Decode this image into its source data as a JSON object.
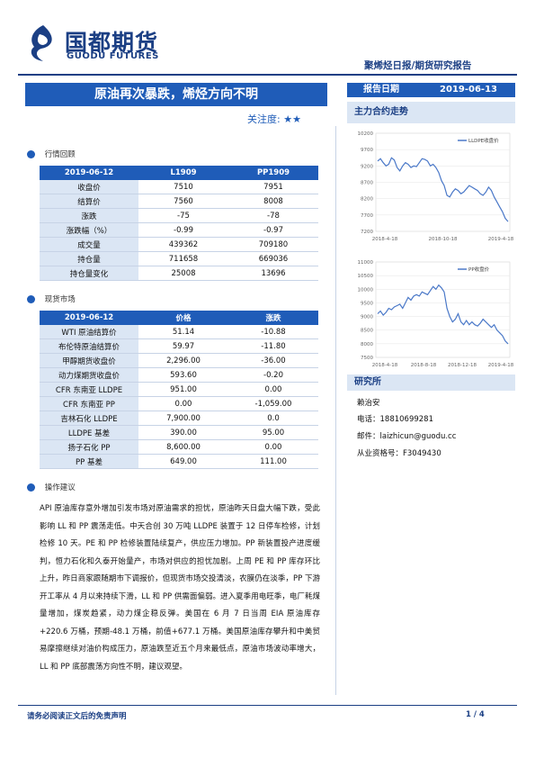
{
  "header": {
    "logo_cn": "国都期货",
    "logo_en": "GUODU FUTURES",
    "report_type": "聚烯烃日报/期货研究报告",
    "title": "原油再次暴跌，烯烃方向不明",
    "date_label": "报告日期",
    "date_value": "2019-06-13",
    "attention_label": "关注度:",
    "attention_stars": "★★"
  },
  "section_review": {
    "title": "行情回顾"
  },
  "review_table": {
    "headers": [
      "2019-06-12",
      "L1909",
      "PP1909"
    ],
    "rows": [
      [
        "收盘价",
        "7510",
        "7951"
      ],
      [
        "结算价",
        "7560",
        "8008"
      ],
      [
        "涨跌",
        "-75",
        "-78"
      ],
      [
        "涨跌幅（%）",
        "-0.99",
        "-0.97"
      ],
      [
        "成交量",
        "439362",
        "709180"
      ],
      [
        "持仓量",
        "711658",
        "669036"
      ],
      [
        "持仓量变化",
        "25008",
        "13696"
      ]
    ]
  },
  "section_spot": {
    "title": "现货市场"
  },
  "spot_table": {
    "headers": [
      "2019-06-12",
      "价格",
      "涨跌"
    ],
    "rows": [
      [
        "WTI 原油结算价",
        "51.14",
        "-10.88"
      ],
      [
        "布伦特原油结算价",
        "59.97",
        "-11.80"
      ],
      [
        "甲醇期货收盘价",
        "2,296.00",
        "-36.00"
      ],
      [
        "动力煤期货收盘价",
        "593.60",
        "-0.20"
      ],
      [
        "CFR 东南亚 LLDPE",
        "951.00",
        "0.00"
      ],
      [
        "CFR 东南亚 PP",
        "0.00",
        "-1,059.00"
      ],
      [
        "吉林石化 LLDPE",
        "7,900.00",
        "0.0"
      ],
      [
        "LLDPE 基差",
        "390.00",
        "95.00"
      ],
      [
        "扬子石化 PP",
        "8,600.00",
        "0.00"
      ],
      [
        "PP 基差",
        "649.00",
        "111.00"
      ]
    ]
  },
  "section_ops": {
    "title": "操作建议"
  },
  "ops_text": "API 原油库存意外增加引发市场对原油需求的担忧，原油昨天日盘大幅下跌，受此影响 LL 和 PP 震荡走低。中天合创 30 万吨 LLDPE 装置于 12 日停车检修，计划检修 10 天。PE 和 PP 检修装置陆续复产，供应压力增加。PP 新装置投产进度缓判，恒力石化和久泰开始量产，市场对供应的担忧加剧。上周 PE 和 PP 库存环比上升，昨日商家跟随期市下调报价，但现货市场交投清淡，农膜仍在淡季，PP 下游开工率从 4 月以来持续下滑，LL 和 PP 供需面偏弱。进入夏季用电旺季，电厂耗煤量增加，煤炭趋紧，动力煤企稳反弹。美国在 6 月 7 日当周 EIA 原油库存 +220.6 万桶，预期-48.1 万桶，前值+677.1 万桶。美国原油库存攀升和中美贸易摩擦继续对油价构成压力，原油跌至近五个月来最低点，原油市场波动率增大，LL 和 PP 底部震荡方向性不明，建议观望。",
  "section_charts": {
    "title": "主力合约走势"
  },
  "chart_data": [
    {
      "type": "line",
      "title": "",
      "series": [
        {
          "name": "LLDPE收盘价",
          "values": [
            9350,
            9420,
            9300,
            9200,
            9250,
            9450,
            9380,
            9150,
            9050,
            9200,
            9300,
            9250,
            9150,
            9200,
            9180,
            9300,
            9420,
            9400,
            9350,
            9200,
            9250,
            9150,
            9000,
            8750,
            8600,
            8300,
            8250,
            8400,
            8500,
            8450,
            8350,
            8400,
            8500,
            8600,
            8550,
            8500,
            8450,
            8350,
            8300,
            8400,
            8550,
            8450,
            8250,
            8100,
            7950,
            7800,
            7600,
            7500
          ]
        }
      ],
      "x_ticks": [
        "2018-4-18",
        "2018-10-18",
        "2019-4-18"
      ],
      "ylim": [
        7200,
        10200
      ],
      "y_ticks": [
        "10200",
        "9700",
        "9200",
        "8700",
        "8200",
        "7700",
        "7200"
      ],
      "legend": "top-right"
    },
    {
      "type": "line",
      "title": "",
      "series": [
        {
          "name": "PP收盘价",
          "values": [
            9100,
            9200,
            9050,
            9150,
            9300,
            9250,
            9350,
            9400,
            9450,
            9300,
            9500,
            9700,
            9600,
            9750,
            9800,
            9750,
            9900,
            9850,
            9800,
            9950,
            10100,
            10000,
            10150,
            10050,
            9900,
            9300,
            9000,
            8800,
            8900,
            9100,
            8800,
            8700,
            8850,
            8700,
            8800,
            8700,
            8650,
            8750,
            8900,
            8800,
            8700,
            8600,
            8700,
            8500,
            8400,
            8300,
            8100,
            8000
          ]
        }
      ],
      "x_ticks": [
        "2018-4-18",
        "2018-8-18",
        "2018-12-18",
        "2019-4-18"
      ],
      "ylim": [
        7500,
        11000
      ],
      "y_ticks": [
        "11000",
        "10500",
        "10000",
        "9500",
        "9000",
        "8500",
        "8000",
        "7500"
      ],
      "legend": "top-right"
    }
  ],
  "research": {
    "title": "研究所",
    "analyst": "赖治安",
    "phone": "电话：18810699281",
    "email": "邮件：laizhicun@guodu.cc",
    "license": "从业资格号：F3049430"
  },
  "footer": {
    "disclaimer": "请务必阅读正文后的免责声明",
    "page": "1 / 4"
  }
}
